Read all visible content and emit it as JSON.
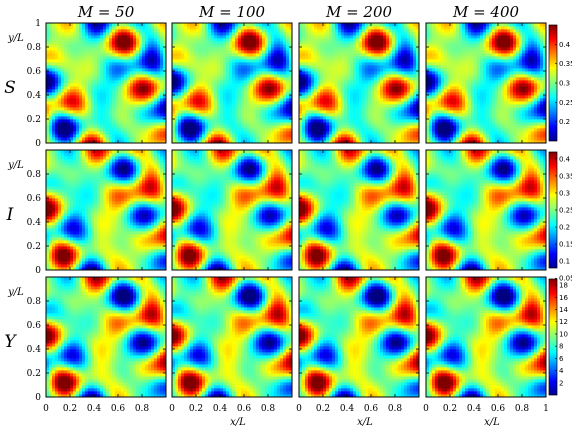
{
  "chart_data": {
    "type": "heatmap",
    "title": "",
    "column_titles": [
      "M = 50",
      "M = 100",
      "M = 200",
      "M = 400"
    ],
    "row_labels": [
      "S",
      "I",
      "Y"
    ],
    "xlabel": "x/L",
    "ylabel": "y/L",
    "xlim": [
      0,
      1
    ],
    "ylim": [
      0,
      1
    ],
    "x_ticks": [
      "0",
      "0.2",
      "0.4",
      "0.6",
      "0.8",
      "1"
    ],
    "y_ticks": [
      "0",
      "0.2",
      "0.4",
      "0.6",
      "0.8",
      "1"
    ],
    "colormap": "jet",
    "colorbars": [
      {
        "row": "S",
        "range": [
          0.15,
          0.45
        ],
        "ticks": [
          "0.4",
          "0.35",
          "0.3",
          "0.25",
          "0.2"
        ]
      },
      {
        "row": "I",
        "range": [
          0.08,
          0.42
        ],
        "ticks": [
          "0.4",
          "0.35",
          "0.3",
          "0.25",
          "0.2",
          "0.15",
          "0.1",
          "0.05"
        ]
      },
      {
        "row": "Y",
        "range": [
          0,
          19
        ],
        "ticks": [
          "18",
          "16",
          "14",
          "12",
          "10",
          "8",
          "6",
          "4",
          "2"
        ]
      }
    ]
  }
}
